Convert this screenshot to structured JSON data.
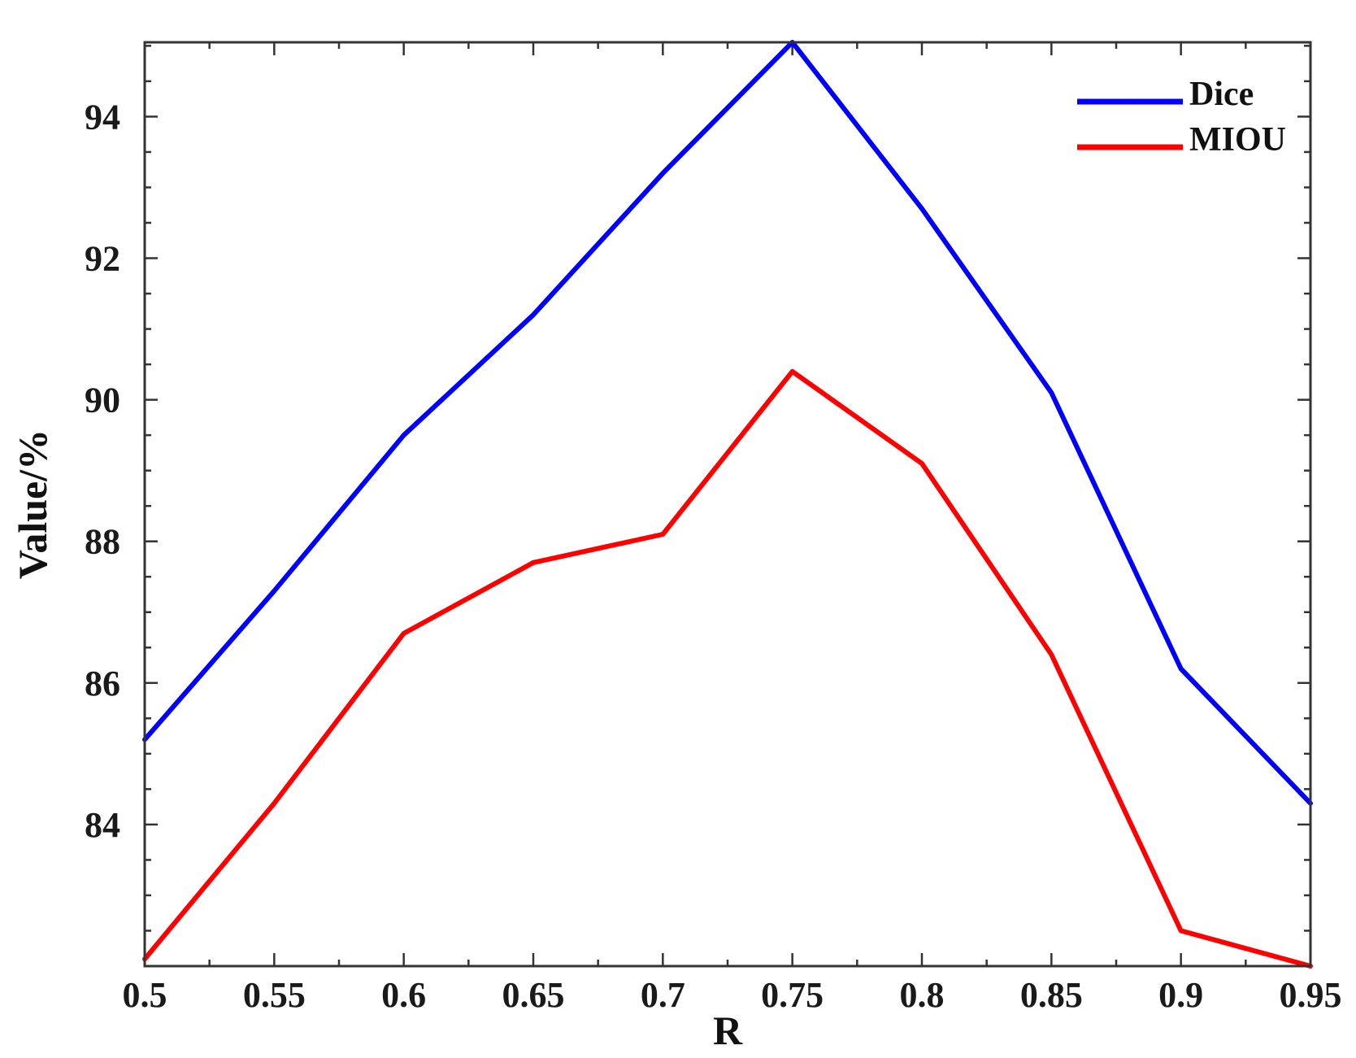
{
  "chart_data": {
    "type": "line",
    "title": "",
    "xlabel": "R",
    "ylabel": "Value/%",
    "x": [
      0.5,
      0.55,
      0.6,
      0.65,
      0.7,
      0.75,
      0.8,
      0.85,
      0.9,
      0.95
    ],
    "x_tick_labels": [
      "0.5",
      "0.55",
      "0.6",
      "0.65",
      "0.7",
      "0.75",
      "0.8",
      "0.85",
      "0.9",
      "0.95"
    ],
    "xlim": [
      0.5,
      0.95
    ],
    "ylim": [
      82.0,
      95.05
    ],
    "y_ticks": [
      84,
      86,
      88,
      90,
      92,
      94
    ],
    "y_tick_labels": [
      "84",
      "86",
      "88",
      "90",
      "92",
      "94"
    ],
    "grid": false,
    "legend_position": "top-right",
    "series": [
      {
        "name": "Dice",
        "color": "#0000ff",
        "values": [
          85.2,
          87.3,
          89.5,
          91.2,
          93.2,
          95.05,
          92.7,
          90.1,
          86.2,
          84.3
        ]
      },
      {
        "name": "MIOU",
        "color": "#ff0000",
        "values": [
          82.1,
          84.3,
          86.7,
          87.7,
          88.1,
          90.4,
          89.1,
          86.4,
          82.5,
          82.0
        ]
      }
    ]
  }
}
